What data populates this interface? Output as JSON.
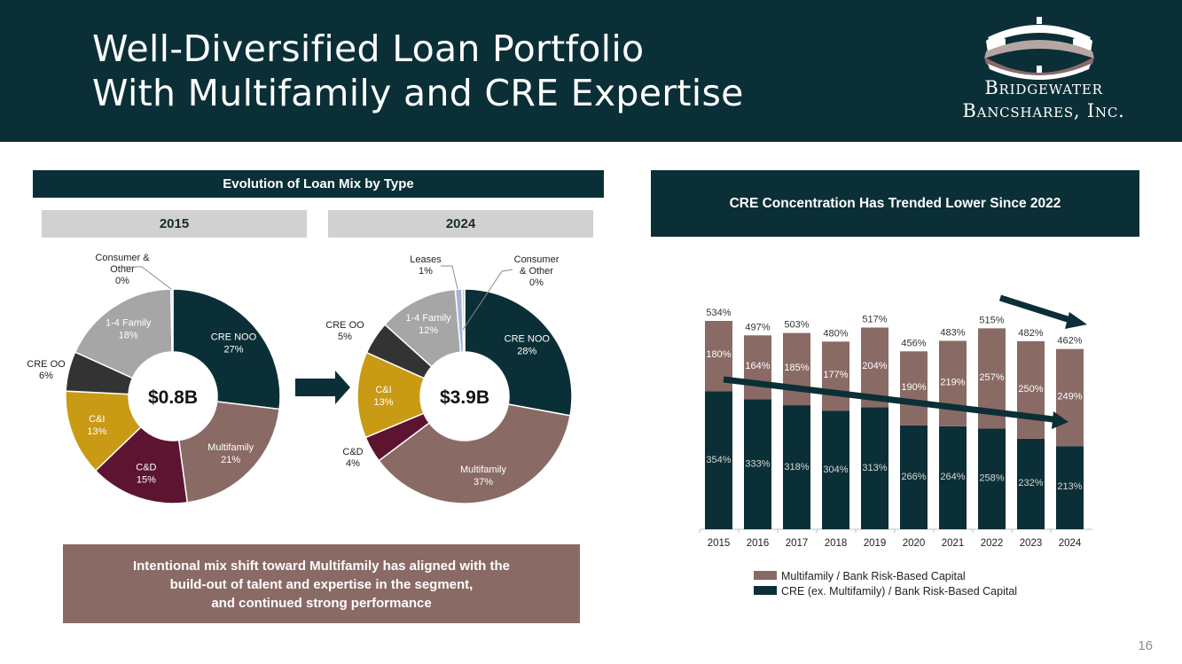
{
  "header": {
    "title_line1": "Well-Diversified Loan Portfolio",
    "title_line2": "With Multifamily and CRE Expertise",
    "logo_line1": "Bridgewater",
    "logo_line2": "Bancshares, Inc."
  },
  "left_panel": {
    "title": "Evolution of Loan Mix by Type",
    "year_2015": "2015",
    "year_2024": "2024",
    "callout_line1": "Intentional mix shift toward Multifamily has aligned with the",
    "callout_line2": "build-out of talent and expertise in the segment,",
    "callout_line3": "and continued strong performance"
  },
  "right_panel": {
    "title": "CRE Concentration Has Trended Lower Since 2022"
  },
  "page_number": "16",
  "colors": {
    "dark_teal": "#0b2f36",
    "mauve": "#8a6a65",
    "maroon": "#5c1430",
    "gold": "#c99a14",
    "charcoal": "#333333",
    "gray": "#a6a6a6",
    "light_blue": "#a3b4d6",
    "light_gray": "#c9c9c9"
  },
  "chart_data": [
    {
      "type": "pie",
      "title": "2015",
      "center_label": "$0.8B",
      "slices": [
        {
          "label": "CRE NOO",
          "value": 27,
          "value_label": "27%",
          "color": "#0b2f36",
          "label_inside": true
        },
        {
          "label": "Multifamily",
          "value": 21,
          "value_label": "21%",
          "color": "#8a6a65",
          "label_inside": true
        },
        {
          "label": "C&D",
          "value": 15,
          "value_label": "15%",
          "color": "#5c1430",
          "label_inside": true
        },
        {
          "label": "C&I",
          "value": 13,
          "value_label": "13%",
          "color": "#c99a14",
          "label_inside": true
        },
        {
          "label": "CRE OO",
          "value": 6,
          "value_label": "6%",
          "color": "#333333",
          "label_inside": false
        },
        {
          "label": "1-4 Family",
          "value": 18,
          "value_label": "18%",
          "color": "#a6a6a6",
          "label_inside": true
        },
        {
          "label": "Consumer & Other",
          "value": 0.3,
          "value_label": "0%",
          "color": "#c9c9c9",
          "label_inside": false
        }
      ]
    },
    {
      "type": "pie",
      "title": "2024",
      "center_label": "$3.9B",
      "slices": [
        {
          "label": "CRE NOO",
          "value": 28,
          "value_label": "28%",
          "color": "#0b2f36",
          "label_inside": true
        },
        {
          "label": "Multifamily",
          "value": 37,
          "value_label": "37%",
          "color": "#8a6a65",
          "label_inside": true
        },
        {
          "label": "C&D",
          "value": 4,
          "value_label": "4%",
          "color": "#5c1430",
          "label_inside": false
        },
        {
          "label": "C&I",
          "value": 13,
          "value_label": "13%",
          "color": "#c99a14",
          "label_inside": true
        },
        {
          "label": "CRE OO",
          "value": 5,
          "value_label": "5%",
          "color": "#333333",
          "label_inside": false
        },
        {
          "label": "1-4 Family",
          "value": 12,
          "value_label": "12%",
          "color": "#a6a6a6",
          "label_inside": true
        },
        {
          "label": "Leases",
          "value": 1,
          "value_label": "1%",
          "color": "#a3b4d6",
          "label_inside": false
        },
        {
          "label": "Consumer & Other",
          "value": 0.4,
          "value_label": "0%",
          "color": "#c9c9c9",
          "label_inside": false
        }
      ]
    },
    {
      "type": "bar",
      "stacked": true,
      "title": "CRE Concentration Has Trended Lower Since 2022",
      "categories": [
        "2015",
        "2016",
        "2017",
        "2018",
        "2019",
        "2020",
        "2021",
        "2022",
        "2023",
        "2024"
      ],
      "series": [
        {
          "name": "CRE (ex. Multifamily) / Bank Risk-Based Capital",
          "color": "#0b2f36",
          "values": [
            354,
            333,
            318,
            304,
            313,
            266,
            264,
            258,
            232,
            213
          ],
          "value_labels": [
            "354%",
            "333%",
            "318%",
            "304%",
            "313%",
            "266%",
            "264%",
            "258%",
            "232%",
            "213%"
          ]
        },
        {
          "name": "Multifamily / Bank Risk-Based Capital",
          "color": "#8a6a65",
          "values": [
            180,
            164,
            185,
            177,
            204,
            190,
            219,
            257,
            250,
            249
          ],
          "value_labels": [
            "180%",
            "164%",
            "185%",
            "177%",
            "204%",
            "190%",
            "219%",
            "257%",
            "250%",
            "249%"
          ]
        }
      ],
      "totals": [
        534,
        497,
        503,
        480,
        517,
        456,
        483,
        515,
        482,
        462
      ],
      "total_labels": [
        "534%",
        "497%",
        "503%",
        "480%",
        "517%",
        "456%",
        "483%",
        "515%",
        "482%",
        "462%"
      ],
      "ylim": [
        0,
        534
      ],
      "legend": [
        "Multifamily / Bank Risk-Based Capital",
        "CRE (ex. Multifamily) / Bank Risk-Based Capital"
      ],
      "legend_position": "bottom",
      "grid": false
    }
  ]
}
